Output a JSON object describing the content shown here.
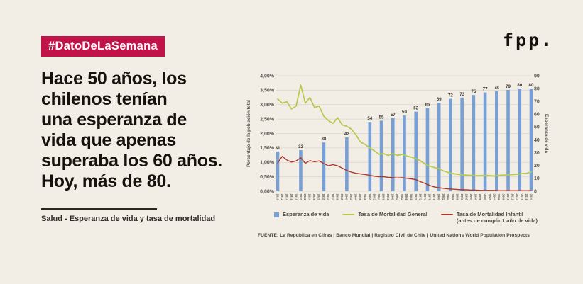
{
  "page": {
    "background": "#F2EEE6"
  },
  "badge": {
    "label": "#DatoDeLaSemana",
    "background": "#C1134A",
    "text_color": "#FFFFFF"
  },
  "logo": {
    "text": "fpp."
  },
  "headline": {
    "lines": [
      "Hace 50 años, los",
      "chilenos tenían",
      "una esperanza de",
      "vida que apenas",
      "superaba los 60 años.",
      "Hoy, más de 80."
    ]
  },
  "topic": {
    "label": "Salud - Esperanza de vida y tasa de mortalidad"
  },
  "source": {
    "text": "FUENTE: La República en Cifras | Banco Mundial | Registro Civil de Chile | United Nations World Population Prospects"
  },
  "legend": {
    "items": [
      {
        "swatch": "bar-square",
        "color": "#78A0D4",
        "label": "Esperanza de vida"
      },
      {
        "swatch": "line",
        "color": "#B5C94A",
        "label": "Tasa de Mortalidad General"
      },
      {
        "swatch": "line",
        "color": "#A93A2C",
        "label": "Tasa de Mortalidad Infantil",
        "label2": "(antes de cumplir 1 año de vida)"
      }
    ]
  },
  "chart_data": {
    "type": "combo-bar-line",
    "x_min": 1910,
    "x_max": 2020,
    "x_ticks": [
      1910,
      1912,
      1914,
      1916,
      1918,
      1920,
      1922,
      1924,
      1926,
      1928,
      1930,
      1932,
      1934,
      1936,
      1938,
      1940,
      1942,
      1944,
      1946,
      1948,
      1950,
      1952,
      1954,
      1956,
      1958,
      1960,
      1962,
      1964,
      1966,
      1968,
      1970,
      1972,
      1974,
      1976,
      1978,
      1980,
      1982,
      1984,
      1986,
      1988,
      1990,
      1992,
      1994,
      1996,
      1998,
      2000,
      2002,
      2004,
      2006,
      2008,
      2010,
      2012,
      2014,
      2016,
      2018,
      2020
    ],
    "grid": "horizontal",
    "left_axis": {
      "title": "Porcentaje de la población total",
      "min": 0,
      "max": 4,
      "tick_labels": [
        "0,00%",
        "0,50%",
        "1,00%",
        "1,50%",
        "2,00%",
        "2,50%",
        "3,00%",
        "3,50%",
        "4,00%"
      ]
    },
    "right_axis": {
      "title": "Esperanza de vida",
      "min": 0,
      "max": 90,
      "tick_labels": [
        "0",
        "10",
        "20",
        "30",
        "40",
        "50",
        "60",
        "70",
        "80",
        "90"
      ]
    },
    "bars": {
      "name": "Esperanza de vida",
      "axis": "right",
      "color": "#78A0D4",
      "years": [
        1910,
        1920,
        1930,
        1940,
        1950,
        1955,
        1960,
        1965,
        1970,
        1975,
        1980,
        1985,
        1990,
        1995,
        2000,
        2005,
        2010,
        2015,
        2020
      ],
      "values": [
        31,
        32,
        38,
        42,
        54,
        55,
        57,
        59,
        62,
        65,
        69,
        72,
        73,
        75,
        77,
        78,
        79,
        80,
        80
      ]
    },
    "lines": [
      {
        "name": "Tasa de Mortalidad General",
        "axis": "left",
        "color": "#B5C94A",
        "x_start": 1910,
        "x_step": 2,
        "values": [
          3.2,
          3.05,
          3.1,
          2.85,
          2.95,
          3.68,
          3.05,
          3.25,
          2.9,
          2.95,
          2.6,
          2.45,
          2.35,
          2.55,
          2.3,
          2.25,
          2.15,
          1.95,
          1.7,
          1.62,
          1.5,
          1.4,
          1.28,
          1.3,
          1.24,
          1.3,
          1.24,
          1.28,
          1.22,
          1.18,
          1.13,
          1.05,
          0.94,
          0.87,
          0.82,
          0.78,
          0.7,
          0.65,
          0.61,
          0.59,
          0.57,
          0.56,
          0.55,
          0.54,
          0.54,
          0.55,
          0.54,
          0.53,
          0.55,
          0.56,
          0.57,
          0.58,
          0.59,
          0.61,
          0.62,
          0.66
        ]
      },
      {
        "name": "Tasa de Mortalidad Infantil (antes de cumplir 1 año de vida)",
        "axis": "left",
        "color": "#A93A2C",
        "x_start": 1910,
        "x_step": 2,
        "values": [
          0.98,
          1.21,
          1.08,
          1.01,
          1.05,
          1.16,
          0.97,
          1.06,
          1.02,
          1.05,
          0.96,
          0.88,
          0.92,
          0.88,
          0.8,
          0.72,
          0.66,
          0.62,
          0.6,
          0.58,
          0.55,
          0.52,
          0.5,
          0.5,
          0.48,
          0.47,
          0.46,
          0.47,
          0.45,
          0.43,
          0.4,
          0.33,
          0.27,
          0.2,
          0.15,
          0.12,
          0.1,
          0.08,
          0.07,
          0.06,
          0.05,
          0.05,
          0.04,
          0.04,
          0.03,
          0.03,
          0.03,
          0.03,
          0.02,
          0.02,
          0.02,
          0.02,
          0.02,
          0.02,
          0.02,
          0.02
        ]
      }
    ]
  }
}
